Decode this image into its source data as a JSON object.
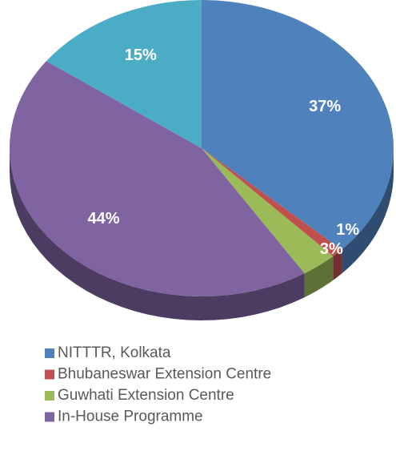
{
  "chart_data": {
    "type": "pie",
    "categories": [
      "NITTTR, Kolkata",
      "Bhubaneswar Extension Centre",
      "Guwhati Extension Centre",
      "In-House Programme",
      null
    ],
    "values": [
      37,
      1,
      3,
      44,
      15
    ],
    "value_labels": [
      "37%",
      "1%",
      "3%",
      "44%",
      "15%"
    ],
    "colors": [
      "#4f81bd",
      "#c0504d",
      "#9bbb59",
      "#8064a2",
      "#4bacc6"
    ]
  }
}
